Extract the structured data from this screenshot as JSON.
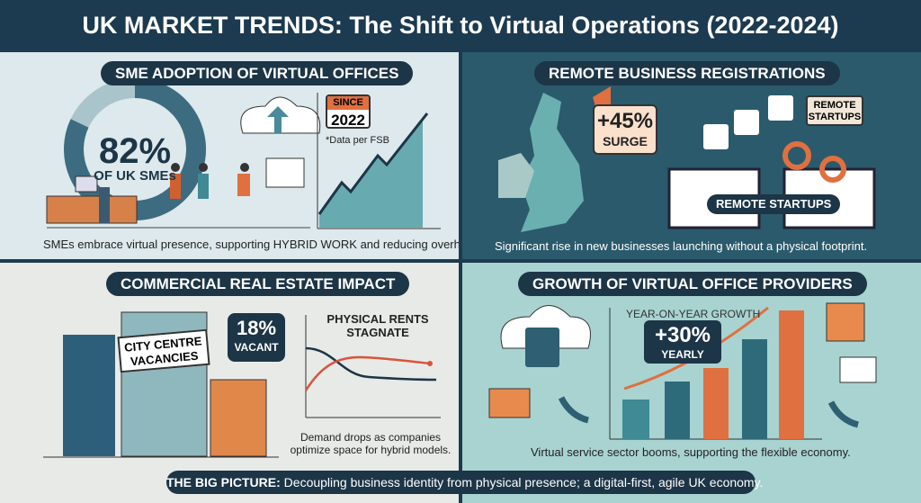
{
  "title": "UK MARKET TRENDS: The Shift to Virtual Operations (2022-2024)",
  "panels": {
    "sme": {
      "heading": "SME ADOPTION OF VIRTUAL OFFICES",
      "stat": "82%",
      "stat_label": "OF UK SMEs",
      "adoption_fraction": 0.82,
      "badge_top": "SINCE",
      "badge_year": "2022",
      "source": "*Data per FSB",
      "caption": "SMEs embrace virtual presence, supporting HYBRID WORK and reducing overheads."
    },
    "remote": {
      "heading": "REMOTE BUSINESS REGISTRATIONS",
      "stat": "+45%",
      "stat_label": "SURGE",
      "bubble": "REMOTE STARTUPS",
      "laptop_label": "REMOTE STARTUPS",
      "caption": "Significant rise in new businesses launching without a physical footprint."
    },
    "realestate": {
      "heading": "COMMERCIAL REAL ESTATE IMPACT",
      "sign": "CITY CENTRE VACANCIES",
      "stat": "18%",
      "stat_label": "VACANT",
      "chart_title": "PHYSICAL RENTS STAGNATE",
      "caption_line1": "Demand drops as companies",
      "caption_line2": "optimize space for hybrid models."
    },
    "providers": {
      "heading": "GROWTH OF VIRTUAL OFFICE PROVIDERS",
      "chart_title": "YEAR-ON-YEAR GROWTH",
      "stat": "+30%",
      "stat_label": "YEARLY",
      "caption": "Virtual service sector booms, supporting the flexible economy."
    }
  },
  "banner": {
    "label": "THE BIG PICTURE:",
    "text": " Decoupling business identity from physical presence; a digital-first, agile UK economy."
  },
  "colors": {
    "navy": "#1c3547",
    "teal": "#2e6b7a",
    "orange": "#e0703f"
  }
}
